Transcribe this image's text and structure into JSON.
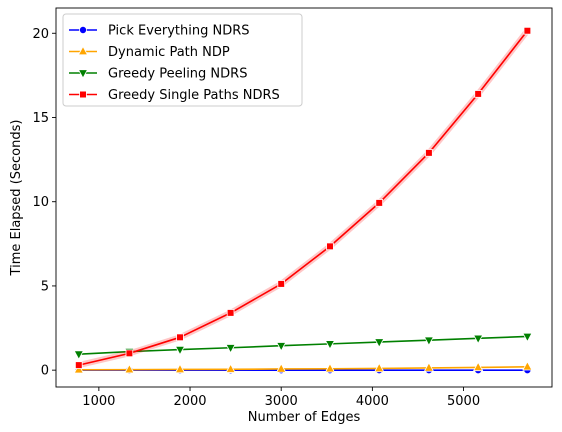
{
  "chart_data": {
    "type": "line",
    "title": "",
    "xlabel": "Number of Edges",
    "ylabel": "Time Elapsed (Seconds)",
    "xlim": [
      530,
      5970
    ],
    "ylim": [
      -1.0,
      21.5
    ],
    "x_ticks": [
      1000,
      2000,
      3000,
      4000,
      5000
    ],
    "y_ticks": [
      0,
      5,
      10,
      15,
      20
    ],
    "grid": false,
    "legend_position": "top-left",
    "x": [
      780,
      1335,
      1890,
      2445,
      3000,
      3535,
      4075,
      4620,
      5160,
      5700
    ],
    "series": [
      {
        "name": "Pick Everything NDRS",
        "color": "#0000ff",
        "marker": "circle",
        "values": [
          0.0,
          0.0,
          0.0,
          0.0,
          0.0,
          0.0,
          0.0,
          0.0,
          0.0,
          0.0
        ]
      },
      {
        "name": "Dynamic Path NDP",
        "color": "#ffa500",
        "marker": "triangle-up",
        "values": [
          0.02,
          0.03,
          0.04,
          0.05,
          0.07,
          0.08,
          0.1,
          0.13,
          0.16,
          0.2
        ]
      },
      {
        "name": "Greedy Peeling NDRS",
        "color": "#008000",
        "marker": "triangle-down",
        "values": [
          0.95,
          1.1,
          1.22,
          1.33,
          1.45,
          1.56,
          1.67,
          1.78,
          1.89,
          2.0
        ]
      },
      {
        "name": "Greedy Single Paths NDRS",
        "color": "#ff0000",
        "marker": "square",
        "values": [
          0.3,
          1.0,
          1.95,
          3.4,
          5.12,
          7.35,
          9.93,
          12.9,
          16.4,
          20.15
        ]
      }
    ]
  }
}
